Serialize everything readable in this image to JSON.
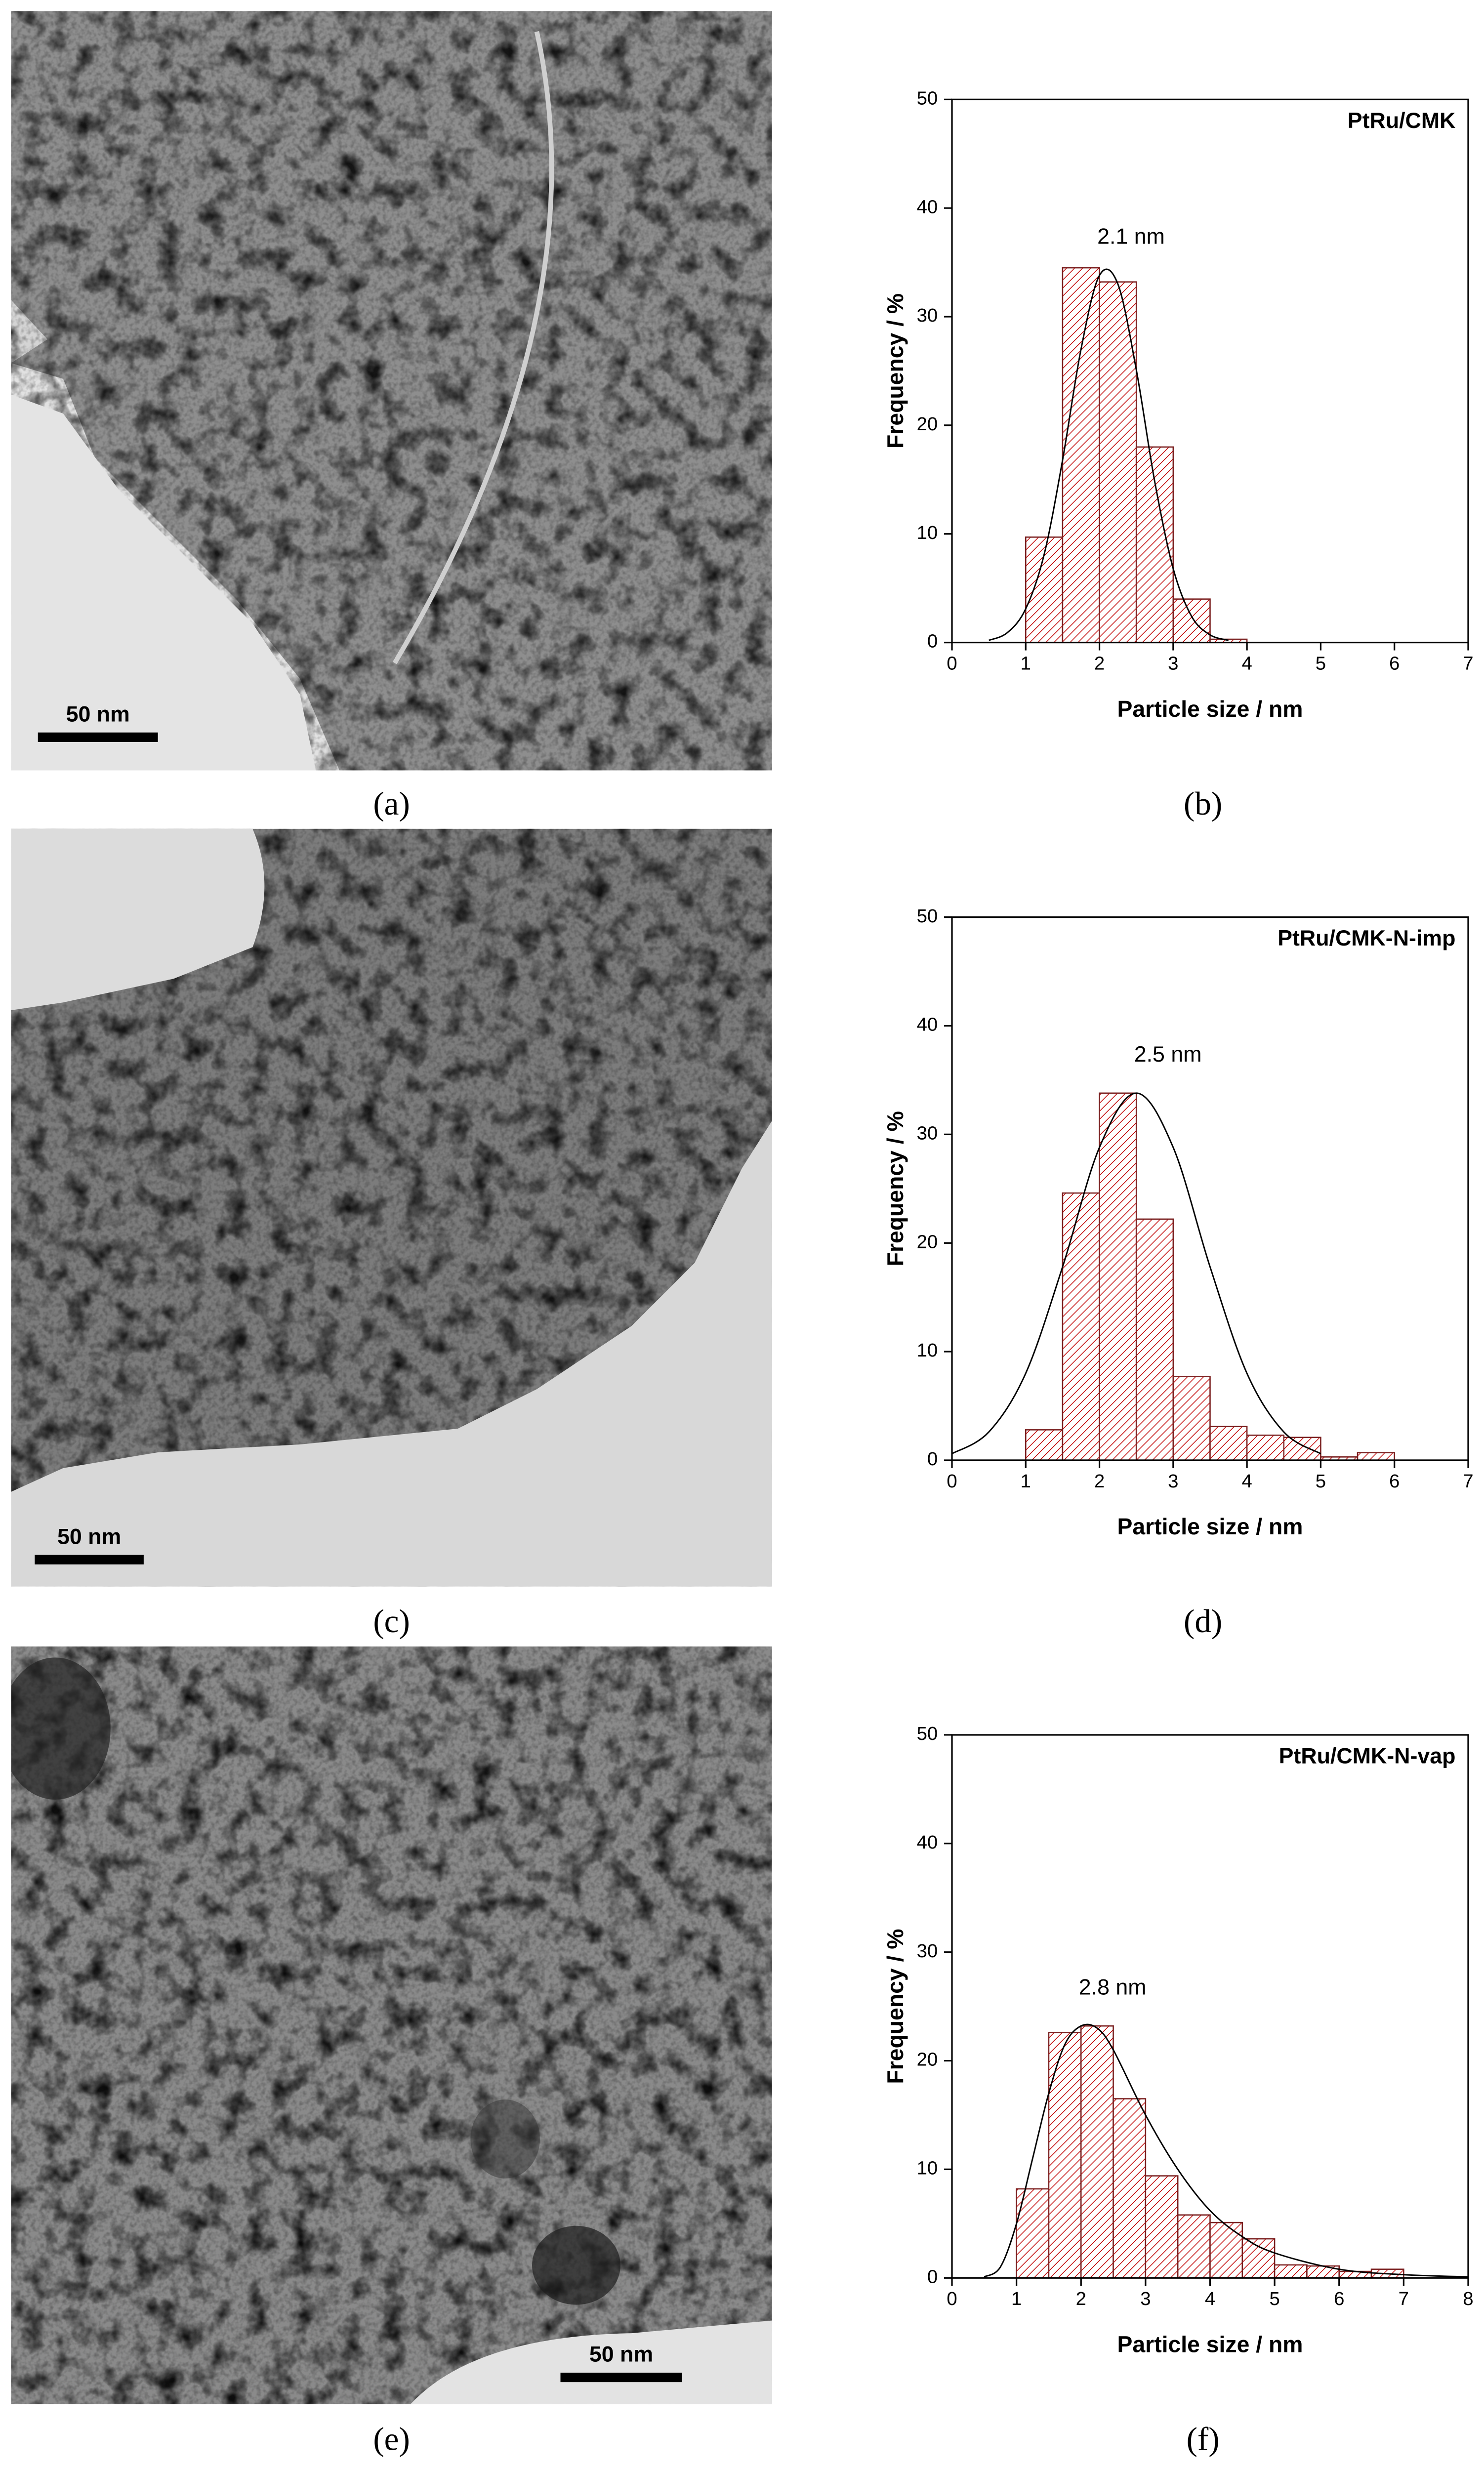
{
  "chart_data": [
    {
      "type": "histogram",
      "title": "PtRu/CMK",
      "x_label": "Particle size / nm",
      "y_label": "Frequency / %",
      "bins": [
        1,
        1.5,
        2,
        2.5,
        3,
        3.5,
        4
      ],
      "values": [
        9.7,
        34.5,
        33.2,
        18,
        4,
        0.3
      ],
      "fit": {
        "label": "2.1 nm",
        "x": [
          0.5,
          0.75,
          1,
          1.25,
          1.5,
          1.75,
          2,
          2.25,
          2.5,
          2.75,
          3,
          3.25,
          3.5,
          3.75
        ],
        "values": [
          0.2,
          0.9,
          3.1,
          8.1,
          16.8,
          27,
          33.8,
          33,
          25.1,
          14.8,
          6.8,
          2.4,
          0.7,
          0.2
        ]
      },
      "color": "#c00000",
      "xlim": [
        0,
        7
      ],
      "xticks": [
        0,
        1,
        2,
        3,
        4,
        5,
        6,
        7
      ],
      "ylim": [
        0,
        50
      ],
      "yticks": [
        0,
        10,
        20,
        30,
        40,
        50
      ]
    },
    {
      "type": "histogram",
      "title": "PtRu/CMK-N-imp",
      "x_label": "Particle size / nm",
      "y_label": "Frequency / %",
      "bins": [
        1,
        1.5,
        2,
        2.5,
        3,
        3.5,
        4,
        4.5,
        5,
        5.5,
        6
      ],
      "values": [
        2.8,
        24.6,
        33.8,
        22.2,
        7.7,
        3.1,
        2.3,
        2.1,
        0.3,
        0.7
      ],
      "fit": {
        "label": "2.5 nm",
        "x": [
          0,
          0.5,
          1,
          1.5,
          2,
          2.5,
          3,
          3.5,
          4,
          4.5,
          5
        ],
        "values": [
          0.6,
          2.6,
          8,
          17.8,
          28.8,
          33.8,
          28.8,
          17.8,
          8,
          2.6,
          0.6
        ]
      },
      "color": "#c00000",
      "xlim": [
        0,
        7
      ],
      "xticks": [
        0,
        1,
        2,
        3,
        4,
        5,
        6,
        7
      ],
      "ylim": [
        0,
        50
      ],
      "yticks": [
        0,
        10,
        20,
        30,
        40,
        50
      ]
    },
    {
      "type": "histogram",
      "title": "PtRu/CMK-N-vap",
      "x_label": "Particle size / nm",
      "y_label": "Frequency / %",
      "bins": [
        1,
        1.5,
        2,
        2.5,
        3,
        3.5,
        4,
        4.5,
        5,
        5.5,
        6,
        6.5,
        7
      ],
      "values": [
        8.2,
        22.6,
        23.2,
        16.5,
        9.4,
        5.8,
        5.1,
        3.6,
        1.2,
        1.1,
        0.6,
        0.8
      ],
      "fit": {
        "label": "2.8 nm",
        "x": [
          0.5,
          0.75,
          1,
          1.25,
          1.5,
          1.75,
          2,
          2.25,
          2.5,
          3,
          3.5,
          4,
          4.5,
          5,
          6,
          7,
          8
        ],
        "values": [
          0.1,
          1,
          5,
          11,
          17,
          21.5,
          23.2,
          23,
          21,
          15,
          10,
          6.2,
          3.8,
          2.3,
          0.8,
          0.3,
          0.1
        ]
      },
      "color": "#c00000",
      "xlim": [
        0,
        8
      ],
      "xticks": [
        0,
        1,
        2,
        3,
        4,
        5,
        6,
        7,
        8
      ],
      "ylim": [
        0,
        50
      ],
      "yticks": [
        0,
        10,
        20,
        30,
        40,
        50
      ]
    }
  ],
  "image_labels": [
    "(a)",
    "(c)",
    "(e)"
  ],
  "chart_labels": [
    "(b)",
    "(d)",
    "(f)"
  ],
  "scale_bars": [
    "50 nm",
    "50 nm",
    "50 nm"
  ]
}
